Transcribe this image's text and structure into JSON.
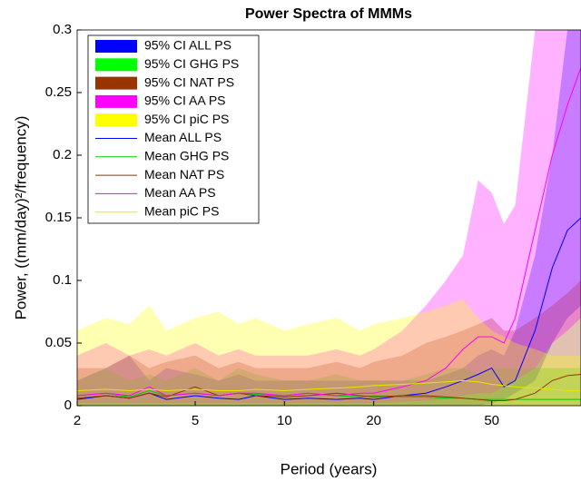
{
  "chart_data": {
    "type": "band-line",
    "title": "Power Spectra of MMMs",
    "x_label": "Period (years)",
    "y_label": "Power, ((mm/day)²/frequency)",
    "log_x": true,
    "xlim": [
      2,
      100
    ],
    "xticks": [
      2,
      5,
      10,
      20,
      50
    ],
    "ylim": [
      0,
      0.3
    ],
    "yticks": [
      0,
      0.05,
      0.1,
      0.15,
      0.2,
      0.25,
      0.3
    ],
    "legend": "upper-left",
    "x": [
      2,
      2.5,
      3,
      3.5,
      4,
      5,
      6,
      7,
      8,
      10,
      12,
      15,
      18,
      20,
      25,
      30,
      35,
      40,
      45,
      50,
      55,
      60,
      70,
      80,
      90,
      100
    ],
    "series": [
      {
        "name": "95% CI ALL PS",
        "color": "#0000ff",
        "kind": "band",
        "upper": [
          0.02,
          0.03,
          0.04,
          0.02,
          0.03,
          0.025,
          0.02,
          0.025,
          0.02,
          0.02,
          0.02,
          0.02,
          0.02,
          0.02,
          0.02,
          0.02,
          0.025,
          0.03,
          0.04,
          0.045,
          0.04,
          0.06,
          0.12,
          0.2,
          0.3,
          0.35
        ],
        "lower": [
          0,
          0,
          0,
          0,
          0,
          0,
          0,
          0,
          0,
          0,
          0,
          0,
          0,
          0,
          0,
          0,
          0,
          0,
          0,
          0.002,
          0.005,
          0.01,
          0.02,
          0.05,
          0.07,
          0.08
        ]
      },
      {
        "name": "95% CI GHG PS",
        "color": "#00ff00",
        "kind": "band",
        "upper": [
          0.02,
          0.03,
          0.02,
          0.025,
          0.02,
          0.03,
          0.02,
          0.03,
          0.025,
          0.02,
          0.02,
          0.025,
          0.02,
          0.02,
          0.02,
          0.025,
          0.03,
          0.03,
          0.025,
          0.03,
          0.03,
          0.03,
          0.03,
          0.03,
          0.03,
          0.03
        ],
        "lower": [
          0,
          0,
          0,
          0,
          0,
          0,
          0,
          0,
          0,
          0,
          0,
          0,
          0,
          0,
          0,
          0,
          0,
          0,
          0,
          0,
          0,
          0,
          0,
          0,
          0,
          0
        ]
      },
      {
        "name": "95% CI NAT PS",
        "color": "#993300",
        "kind": "band",
        "upper": [
          0.03,
          0.03,
          0.04,
          0.03,
          0.035,
          0.04,
          0.03,
          0.035,
          0.03,
          0.03,
          0.03,
          0.035,
          0.03,
          0.035,
          0.04,
          0.05,
          0.055,
          0.06,
          0.065,
          0.07,
          0.06,
          0.06,
          0.07,
          0.08,
          0.09,
          0.1
        ],
        "lower": [
          0,
          0,
          0,
          0,
          0,
          0,
          0,
          0,
          0,
          0,
          0,
          0,
          0,
          0,
          0,
          0,
          0,
          0,
          0,
          0,
          0,
          0,
          0,
          0,
          0,
          0
        ]
      },
      {
        "name": "95% CI AA PS",
        "color": "#ff00ff",
        "kind": "band",
        "upper": [
          0.04,
          0.05,
          0.04,
          0.045,
          0.04,
          0.05,
          0.04,
          0.045,
          0.04,
          0.04,
          0.04,
          0.045,
          0.04,
          0.045,
          0.06,
          0.08,
          0.1,
          0.12,
          0.18,
          0.17,
          0.145,
          0.16,
          0.3,
          0.4,
          0.45,
          0.5
        ],
        "lower": [
          0.002,
          0.002,
          0.002,
          0.002,
          0.002,
          0.002,
          0.002,
          0.002,
          0.002,
          0.002,
          0.002,
          0.002,
          0.002,
          0.002,
          0.003,
          0.004,
          0.005,
          0.008,
          0.01,
          0.01,
          0.015,
          0.02,
          0.03,
          0.05,
          0.06,
          0.07
        ]
      },
      {
        "name": "95% CI piC PS",
        "color": "#ffff00",
        "kind": "band",
        "upper": [
          0.06,
          0.07,
          0.065,
          0.08,
          0.06,
          0.07,
          0.075,
          0.065,
          0.07,
          0.06,
          0.065,
          0.07,
          0.06,
          0.065,
          0.07,
          0.075,
          0.08,
          0.085,
          0.07,
          0.06,
          0.055,
          0.05,
          0.045,
          0.04,
          0.04,
          0.04
        ],
        "lower": [
          0,
          0,
          0,
          0,
          0,
          0,
          0,
          0,
          0,
          0,
          0,
          0,
          0,
          0,
          0,
          0,
          0,
          0,
          0,
          0,
          0,
          0,
          0,
          0,
          0,
          0
        ]
      },
      {
        "name": "Mean ALL PS",
        "color": "#0000ff",
        "kind": "line",
        "values": [
          0.005,
          0.008,
          0.006,
          0.01,
          0.005,
          0.008,
          0.006,
          0.005,
          0.008,
          0.005,
          0.006,
          0.005,
          0.006,
          0.005,
          0.008,
          0.01,
          0.015,
          0.02,
          0.025,
          0.03,
          0.015,
          0.02,
          0.06,
          0.11,
          0.14,
          0.15
        ]
      },
      {
        "name": "Mean GHG PS",
        "color": "#00cc00",
        "kind": "line",
        "values": [
          0.008,
          0.01,
          0.007,
          0.012,
          0.008,
          0.01,
          0.008,
          0.01,
          0.009,
          0.008,
          0.01,
          0.008,
          0.007,
          0.008,
          0.007,
          0.007,
          0.006,
          0.006,
          0.005,
          0.005,
          0.005,
          0.005,
          0.005,
          0.005,
          0.005,
          0.005
        ]
      },
      {
        "name": "Mean NAT PS",
        "color": "#993300",
        "kind": "line",
        "values": [
          0.006,
          0.008,
          0.006,
          0.01,
          0.007,
          0.015,
          0.008,
          0.01,
          0.008,
          0.007,
          0.008,
          0.01,
          0.008,
          0.007,
          0.008,
          0.008,
          0.007,
          0.006,
          0.005,
          0.004,
          0.004,
          0.005,
          0.01,
          0.02,
          0.024,
          0.025
        ]
      },
      {
        "name": "Mean AA PS",
        "color": "#ff00ff",
        "kind": "line",
        "values": [
          0.008,
          0.01,
          0.008,
          0.015,
          0.008,
          0.01,
          0.008,
          0.01,
          0.01,
          0.008,
          0.01,
          0.008,
          0.01,
          0.01,
          0.015,
          0.02,
          0.03,
          0.045,
          0.055,
          0.055,
          0.05,
          0.07,
          0.14,
          0.2,
          0.24,
          0.27
        ]
      },
      {
        "name": "Mean piC PS",
        "color": "#e6e600",
        "kind": "line",
        "values": [
          0.012,
          0.013,
          0.012,
          0.013,
          0.012,
          0.013,
          0.012,
          0.012,
          0.013,
          0.012,
          0.013,
          0.014,
          0.015,
          0.016,
          0.017,
          0.018,
          0.019,
          0.02,
          0.019,
          0.017,
          0.016,
          0.015,
          0.014,
          0.013,
          0.012,
          0.012
        ]
      }
    ]
  }
}
